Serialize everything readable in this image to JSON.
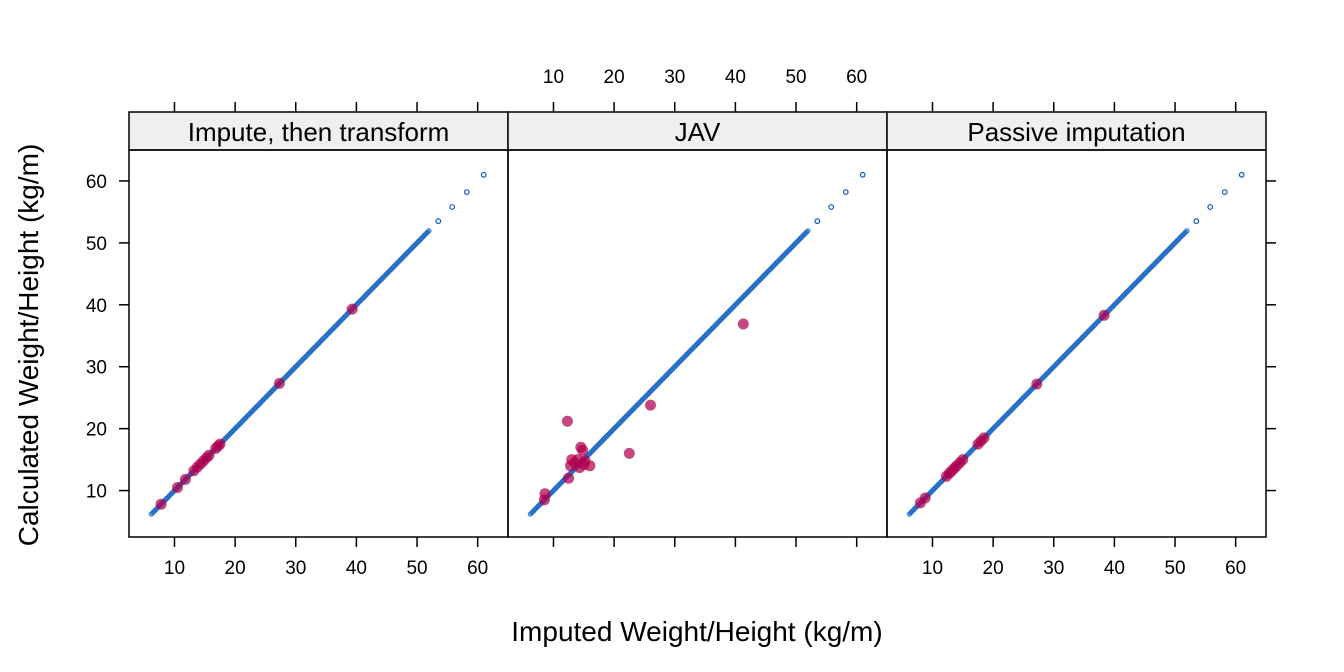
{
  "chart_data": {
    "type": "scatter",
    "xlabel": "Imputed Weight/Height (kg/m)",
    "ylabel": "Calculated Weight/Height (kg/m)",
    "xlim": [
      2.5,
      65
    ],
    "ylim": [
      2.5,
      65
    ],
    "xticks": [
      10,
      20,
      30,
      40,
      50,
      60
    ],
    "yticks": [
      10,
      20,
      30,
      40,
      50,
      60
    ],
    "colors": {
      "observed": "#0b5cc0",
      "imputed": "#b0004e",
      "strip": "#efefef"
    },
    "panels": [
      {
        "strip": "Impute, then transform",
        "observed_range": [
          6.2,
          52
        ],
        "observed_sparse_x": [
          53.5,
          55.8,
          58.2,
          61
        ],
        "imputed": [
          [
            7.8,
            7.8
          ],
          [
            10.5,
            10.5
          ],
          [
            11.8,
            11.8
          ],
          [
            13.2,
            13.2
          ],
          [
            13.8,
            13.8
          ],
          [
            14.3,
            14.3
          ],
          [
            14.8,
            14.8
          ],
          [
            15.3,
            15.3
          ],
          [
            15.7,
            15.7
          ],
          [
            16.8,
            16.8
          ],
          [
            17.2,
            17.2
          ],
          [
            17.5,
            17.5
          ],
          [
            27.3,
            27.3
          ],
          [
            39.3,
            39.3
          ]
        ]
      },
      {
        "strip": "JAV",
        "observed_range": [
          6.2,
          52
        ],
        "observed_sparse_x": [
          53.5,
          55.8,
          58.2,
          61
        ],
        "imputed": [
          [
            8.5,
            8.5
          ],
          [
            8.6,
            9.5
          ],
          [
            12.3,
            21.2
          ],
          [
            12.5,
            12.0
          ],
          [
            12.8,
            14.0
          ],
          [
            13.0,
            15.0
          ],
          [
            13.5,
            14.5
          ],
          [
            14.0,
            15.0
          ],
          [
            14.3,
            13.7
          ],
          [
            14.5,
            17.0
          ],
          [
            14.8,
            16.5
          ],
          [
            15.0,
            14.2
          ],
          [
            15.2,
            14.8
          ],
          [
            16.0,
            14.0
          ],
          [
            22.5,
            16.0
          ],
          [
            26.0,
            23.8
          ],
          [
            41.3,
            36.9
          ]
        ]
      },
      {
        "strip": "Passive imputation",
        "observed_range": [
          6.2,
          52
        ],
        "observed_sparse_x": [
          53.5,
          55.8,
          58.2,
          61
        ],
        "imputed": [
          [
            8.0,
            8.0
          ],
          [
            8.8,
            8.8
          ],
          [
            12.3,
            12.3
          ],
          [
            12.8,
            12.8
          ],
          [
            13.2,
            13.2
          ],
          [
            13.6,
            13.6
          ],
          [
            14.0,
            14.0
          ],
          [
            14.5,
            14.5
          ],
          [
            15.0,
            15.0
          ],
          [
            17.5,
            17.5
          ],
          [
            18.0,
            18.0
          ],
          [
            18.5,
            18.5
          ],
          [
            27.2,
            27.2
          ],
          [
            38.3,
            38.3
          ]
        ]
      }
    ]
  }
}
